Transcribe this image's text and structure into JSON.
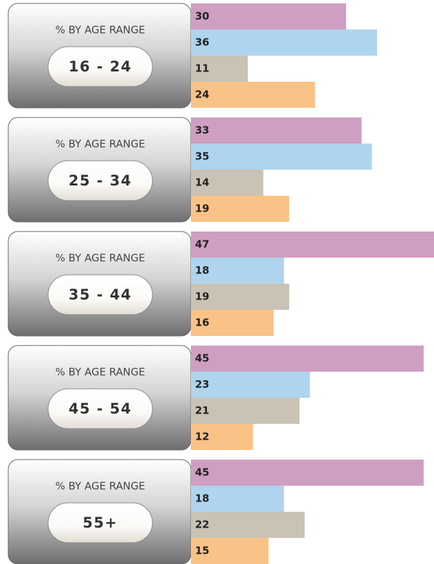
{
  "chart_data": {
    "type": "bar",
    "panel_title": "% BY AGE RANGE",
    "categories": [
      "16 - 24",
      "25 - 34",
      "35 - 44",
      "45 - 54",
      "55+"
    ],
    "series": [
      {
        "color": "#cf9fc1",
        "values": [
          30,
          33,
          47,
          45,
          45
        ]
      },
      {
        "color": "#afd4ee",
        "values": [
          36,
          35,
          18,
          23,
          18
        ]
      },
      {
        "color": "#c9c2b5",
        "values": [
          11,
          14,
          19,
          21,
          22
        ]
      },
      {
        "color": "#f9c286",
        "values": [
          24,
          19,
          16,
          12,
          15
        ]
      }
    ]
  }
}
